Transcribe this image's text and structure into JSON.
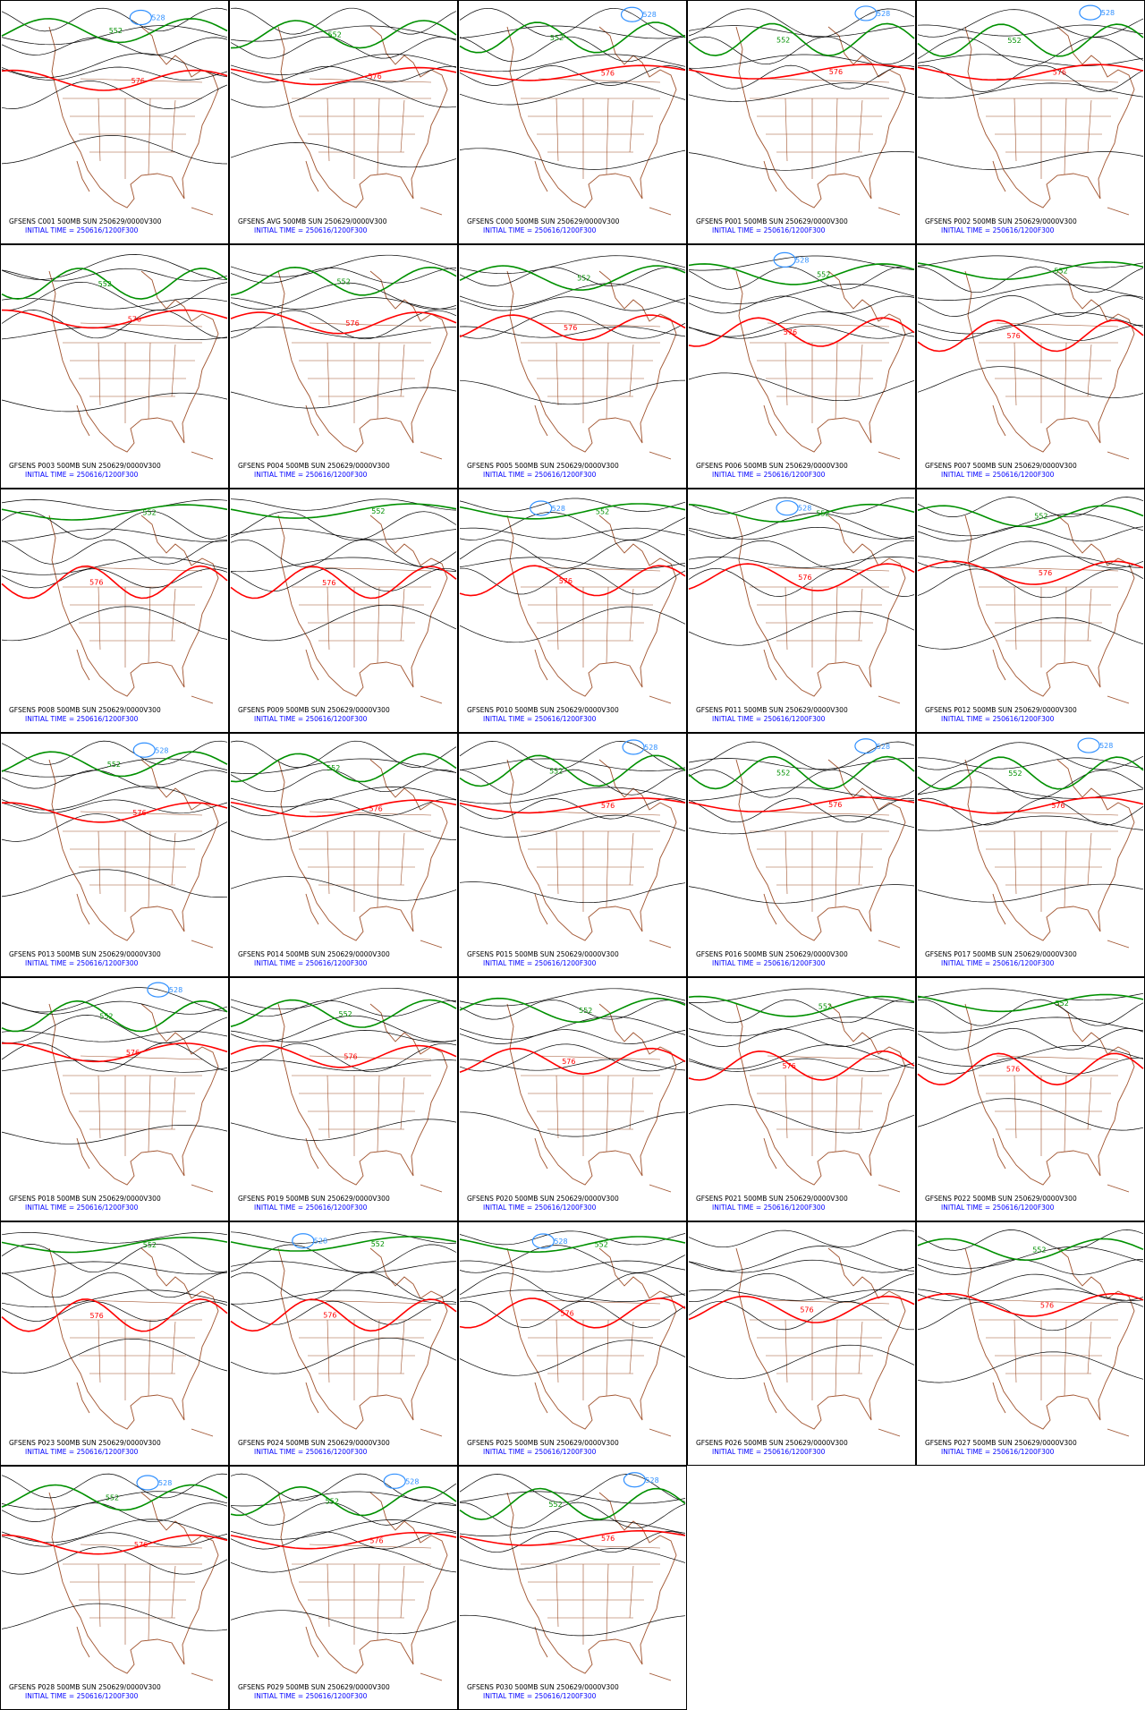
{
  "panels": [
    {
      "line1": "GFSENS C001 500MB SUN 250629/0000V300",
      "line2": "INITIAL TIME = 250616/1200F300",
      "contours": [
        {
          "label": "576",
          "color": "#ff0000"
        },
        {
          "label": "552",
          "color": "#009000"
        },
        {
          "label": "528",
          "color": "#3090ff"
        }
      ]
    },
    {
      "line1": "GFSENS AVG 500MB SUN 250629/0000V300",
      "line2": "INITIAL TIME = 250616/1200F300",
      "contours": [
        {
          "label": "576",
          "color": "#ff0000"
        },
        {
          "label": "552",
          "color": "#009000"
        }
      ]
    },
    {
      "line1": "GFSENS C000 500MB SUN 250629/0000V300",
      "line2": "INITIAL TIME = 250616/1200F300",
      "contours": [
        {
          "label": "576",
          "color": "#ff0000"
        },
        {
          "label": "552",
          "color": "#009000"
        },
        {
          "label": "528",
          "color": "#3090ff"
        }
      ]
    },
    {
      "line1": "GFSENS P001 500MB SUN 250629/0000V300",
      "line2": "INITIAL TIME = 250616/1200F300",
      "contours": [
        {
          "label": "576",
          "color": "#ff0000"
        },
        {
          "label": "552",
          "color": "#009000"
        },
        {
          "label": "528",
          "color": "#3090ff"
        }
      ]
    },
    {
      "line1": "GFSENS P002 500MB SUN 250629/0000V300",
      "line2": "INITIAL TIME = 250616/1200F300",
      "contours": [
        {
          "label": "576",
          "color": "#ff0000"
        },
        {
          "label": "552",
          "color": "#009000"
        },
        {
          "label": "528",
          "color": "#3090ff"
        }
      ]
    },
    {
      "line1": "GFSENS P003 500MB SUN 250629/0000V300",
      "line2": "INITIAL TIME = 250616/1200F300",
      "contours": [
        {
          "label": "576",
          "color": "#ff0000"
        },
        {
          "label": "552",
          "color": "#009000"
        }
      ]
    },
    {
      "line1": "GFSENS P004 500MB SUN 250629/0000V300",
      "line2": "INITIAL TIME = 250616/1200F300",
      "contours": [
        {
          "label": "576",
          "color": "#ff0000"
        },
        {
          "label": "552",
          "color": "#009000"
        }
      ]
    },
    {
      "line1": "GFSENS P005 500MB SUN 250629/0000V300",
      "line2": "INITIAL TIME = 250616/1200F300",
      "contours": [
        {
          "label": "576",
          "color": "#ff0000"
        },
        {
          "label": "552",
          "color": "#009000"
        }
      ]
    },
    {
      "line1": "GFSENS P006 500MB SUN 250629/0000V300",
      "line2": "INITIAL TIME = 250616/1200F300",
      "contours": [
        {
          "label": "576",
          "color": "#ff0000"
        },
        {
          "label": "552",
          "color": "#009000"
        },
        {
          "label": "528",
          "color": "#3090ff"
        }
      ]
    },
    {
      "line1": "GFSENS P007 500MB SUN 250629/0000V300",
      "line2": "INITIAL TIME = 250616/1200F300",
      "contours": [
        {
          "label": "576",
          "color": "#ff0000"
        },
        {
          "label": "552",
          "color": "#009000"
        }
      ]
    },
    {
      "line1": "GFSENS P008 500MB SUN 250629/0000V300",
      "line2": "INITIAL TIME = 250616/1200F300",
      "contours": [
        {
          "label": "576",
          "color": "#ff0000"
        },
        {
          "label": "552",
          "color": "#009000"
        }
      ]
    },
    {
      "line1": "GFSENS P009 500MB SUN 250629/0000V300",
      "line2": "INITIAL TIME = 250616/1200F300",
      "contours": [
        {
          "label": "576",
          "color": "#ff0000"
        },
        {
          "label": "552",
          "color": "#009000"
        }
      ]
    },
    {
      "line1": "GFSENS P010 500MB SUN 250629/0000V300",
      "line2": "INITIAL TIME = 250616/1200F300",
      "contours": [
        {
          "label": "576",
          "color": "#ff0000"
        },
        {
          "label": "552",
          "color": "#009000"
        },
        {
          "label": "528",
          "color": "#3090ff"
        }
      ]
    },
    {
      "line1": "GFSENS P011 500MB SUN 250629/0000V300",
      "line2": "INITIAL TIME = 250616/1200F300",
      "contours": [
        {
          "label": "576",
          "color": "#ff0000"
        },
        {
          "label": "552",
          "color": "#009000"
        },
        {
          "label": "528",
          "color": "#3090ff"
        }
      ]
    },
    {
      "line1": "GFSENS P012 500MB SUN 250629/0000V300",
      "line2": "INITIAL TIME = 250616/1200F300",
      "contours": [
        {
          "label": "576",
          "color": "#ff0000"
        },
        {
          "label": "552",
          "color": "#009000"
        }
      ]
    },
    {
      "line1": "GFSENS P013 500MB SUN 250629/0000V300",
      "line2": "INITIAL TIME = 250616/1200F300",
      "contours": [
        {
          "label": "576",
          "color": "#ff0000"
        },
        {
          "label": "552",
          "color": "#009000"
        },
        {
          "label": "528",
          "color": "#3090ff"
        }
      ]
    },
    {
      "line1": "GFSENS P014 500MB SUN 250629/0000V300",
      "line2": "INITIAL TIME = 250616/1200F300",
      "contours": [
        {
          "label": "576",
          "color": "#ff0000"
        },
        {
          "label": "552",
          "color": "#009000"
        }
      ]
    },
    {
      "line1": "GFSENS P015 500MB SUN 250629/0000V300",
      "line2": "INITIAL TIME = 250616/1200F300",
      "contours": [
        {
          "label": "576",
          "color": "#ff0000"
        },
        {
          "label": "552",
          "color": "#009000"
        },
        {
          "label": "528",
          "color": "#3090ff"
        }
      ]
    },
    {
      "line1": "GFSENS P016 500MB SUN 250629/0000V300",
      "line2": "INITIAL TIME = 250616/1200F300",
      "contours": [
        {
          "label": "576",
          "color": "#ff0000"
        },
        {
          "label": "552",
          "color": "#009000"
        },
        {
          "label": "528",
          "color": "#3090ff"
        }
      ]
    },
    {
      "line1": "GFSENS P017 500MB SUN 250629/0000V300",
      "line2": "INITIAL TIME = 250616/1200F300",
      "contours": [
        {
          "label": "576",
          "color": "#ff0000"
        },
        {
          "label": "552",
          "color": "#009000"
        },
        {
          "label": "528",
          "color": "#3090ff"
        }
      ]
    },
    {
      "line1": "GFSENS P018 500MB SUN 250629/0000V300",
      "line2": "INITIAL TIME = 250616/1200F300",
      "contours": [
        {
          "label": "576",
          "color": "#ff0000"
        },
        {
          "label": "552",
          "color": "#009000"
        },
        {
          "label": "528",
          "color": "#3090ff"
        }
      ]
    },
    {
      "line1": "GFSENS P019 500MB SUN 250629/0000V300",
      "line2": "INITIAL TIME = 250616/1200F300",
      "contours": [
        {
          "label": "576",
          "color": "#ff0000"
        },
        {
          "label": "552",
          "color": "#009000"
        }
      ]
    },
    {
      "line1": "GFSENS P020 500MB SUN 250629/0000V300",
      "line2": "INITIAL TIME = 250616/1200F300",
      "contours": [
        {
          "label": "576",
          "color": "#ff0000"
        },
        {
          "label": "552",
          "color": "#009000"
        }
      ]
    },
    {
      "line1": "GFSENS P021 500MB SUN 250629/0000V300",
      "line2": "INITIAL TIME = 250616/1200F300",
      "contours": [
        {
          "label": "576",
          "color": "#ff0000"
        },
        {
          "label": "552",
          "color": "#009000"
        }
      ]
    },
    {
      "line1": "GFSENS P022 500MB SUN 250629/0000V300",
      "line2": "INITIAL TIME = 250616/1200F300",
      "contours": [
        {
          "label": "576",
          "color": "#ff0000"
        },
        {
          "label": "552",
          "color": "#009000"
        }
      ]
    },
    {
      "line1": "GFSENS P023 500MB SUN 250629/0000V300",
      "line2": "INITIAL TIME = 250616/1200F300",
      "contours": [
        {
          "label": "576",
          "color": "#ff0000"
        },
        {
          "label": "552",
          "color": "#009000"
        }
      ]
    },
    {
      "line1": "GFSENS P024 500MB SUN 250629/0000V300",
      "line2": "INITIAL TIME = 250616/1200F300",
      "contours": [
        {
          "label": "576",
          "color": "#ff0000"
        },
        {
          "label": "552",
          "color": "#009000"
        },
        {
          "label": "528",
          "color": "#3090ff"
        }
      ]
    },
    {
      "line1": "GFSENS P025 500MB SUN 250629/0000V300",
      "line2": "INITIAL TIME = 250616/1200F300",
      "contours": [
        {
          "label": "576",
          "color": "#ff0000"
        },
        {
          "label": "552",
          "color": "#009000"
        },
        {
          "label": "528",
          "color": "#3090ff"
        }
      ]
    },
    {
      "line1": "GFSENS P026 500MB SUN 250629/0000V300",
      "line2": "INITIAL TIME = 250616/1200F300",
      "contours": [
        {
          "label": "576",
          "color": "#ff0000"
        }
      ]
    },
    {
      "line1": "GFSENS P027 500MB SUN 250629/0000V300",
      "line2": "INITIAL TIME = 250616/1200F300",
      "contours": [
        {
          "label": "576",
          "color": "#ff0000"
        },
        {
          "label": "552",
          "color": "#009000"
        }
      ]
    },
    {
      "line1": "GFSENS P028 500MB SUN 250629/0000V300",
      "line2": "INITIAL TIME = 250616/1200F300",
      "contours": [
        {
          "label": "576",
          "color": "#ff0000"
        },
        {
          "label": "552",
          "color": "#009000"
        },
        {
          "label": "528",
          "color": "#3090ff"
        }
      ]
    },
    {
      "line1": "GFSENS P029 500MB SUN 250629/0000V300",
      "line2": "INITIAL TIME = 250616/1200F300",
      "contours": [
        {
          "label": "576",
          "color": "#ff0000"
        },
        {
          "label": "552",
          "color": "#009000"
        },
        {
          "label": "528",
          "color": "#3090ff"
        }
      ]
    },
    {
      "line1": "GFSENS P030 500MB SUN 250629/0000V300",
      "line2": "INITIAL TIME = 250616/1200F300",
      "contours": [
        {
          "label": "576",
          "color": "#ff0000"
        },
        {
          "label": "552",
          "color": "#009000"
        },
        {
          "label": "528",
          "color": "#3090ff"
        }
      ]
    }
  ]
}
